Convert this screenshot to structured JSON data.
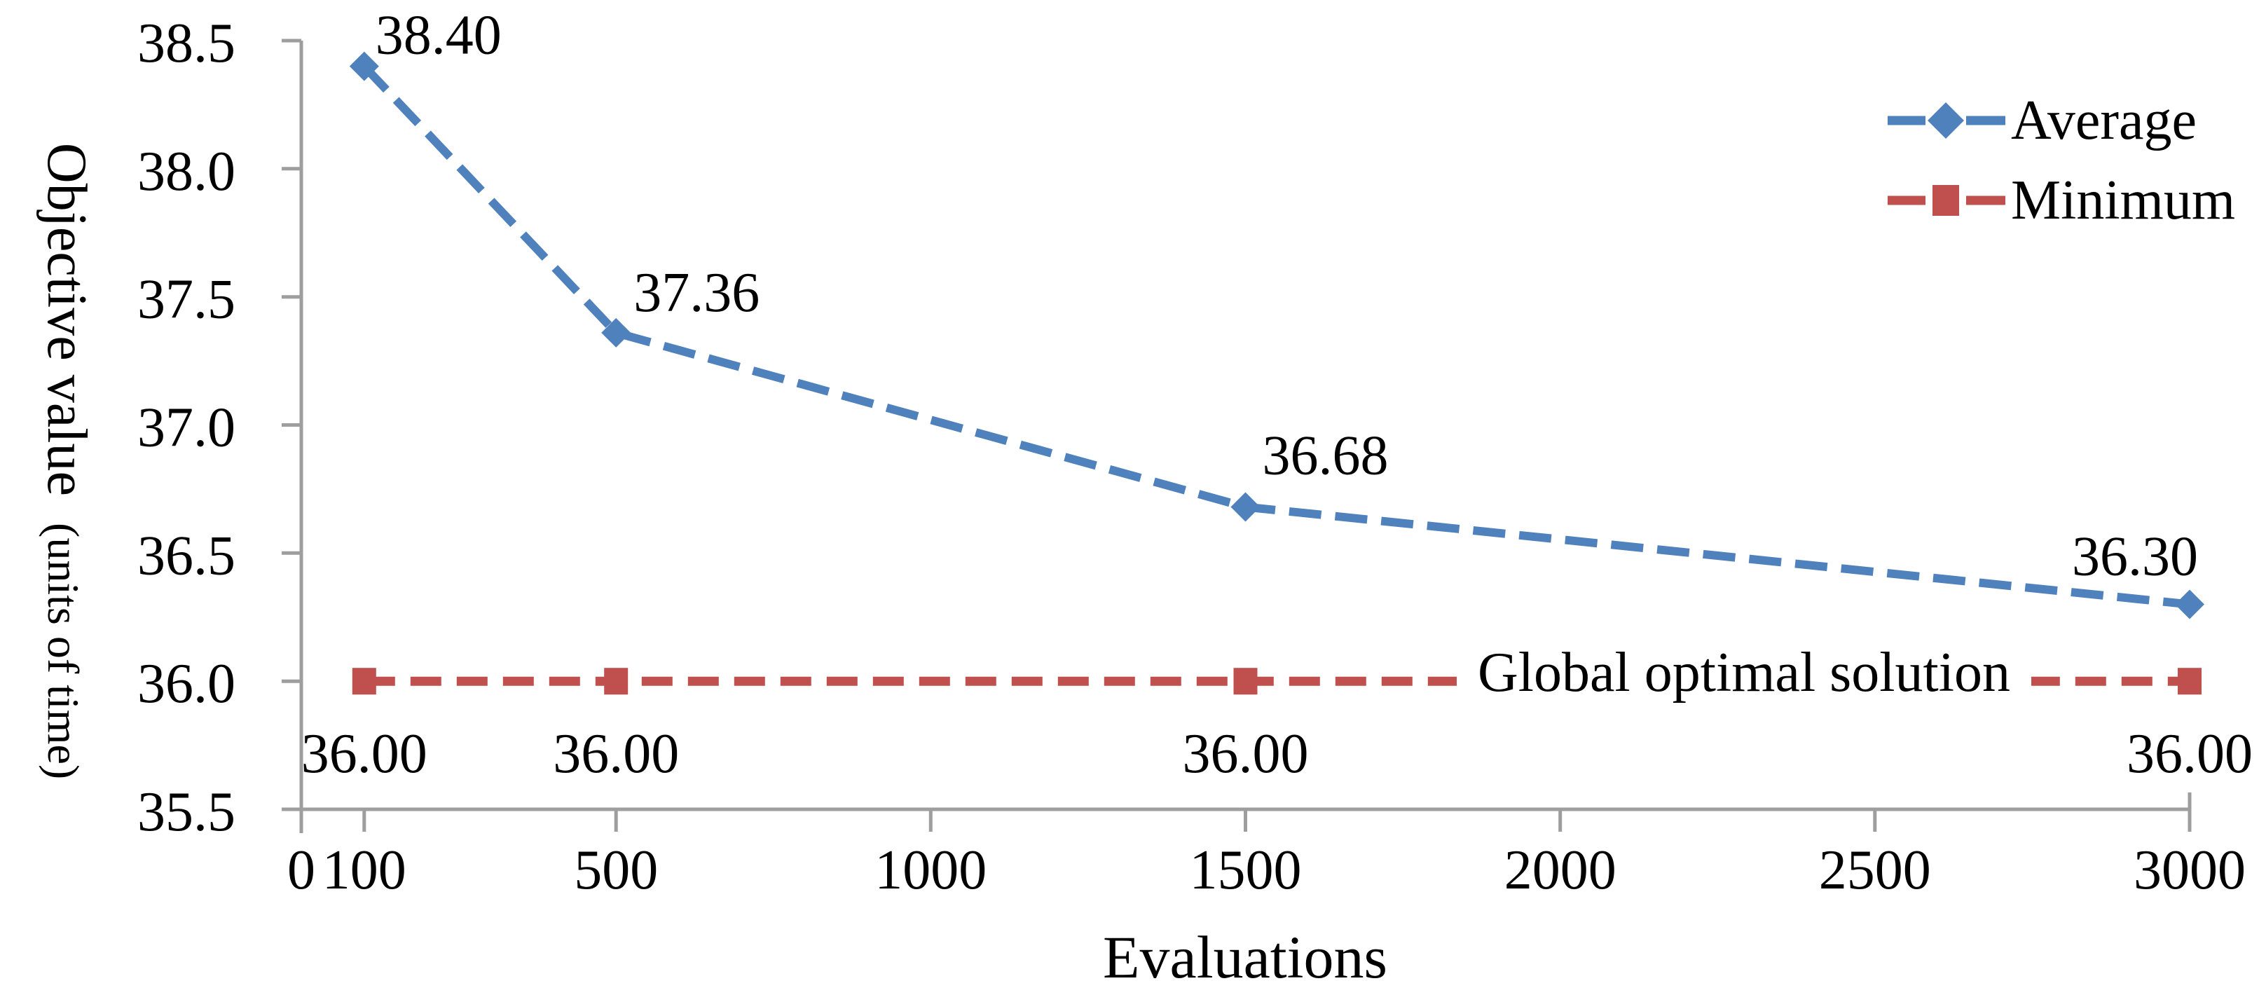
{
  "chart_data": {
    "type": "line",
    "title": "",
    "xlabel": "Evaluations",
    "ylabel": "Objective value",
    "ylabel_sub": "(units of time)",
    "xlim": [
      0,
      3000
    ],
    "ylim": [
      35.5,
      38.5
    ],
    "grid": false,
    "legend_position": "top-right",
    "x_ticks": [
      0,
      100,
      500,
      1000,
      1500,
      2000,
      2500,
      3000
    ],
    "x_tick_labels": [
      "0",
      "100",
      "500",
      "1000",
      "1500",
      "2000",
      "2500",
      "3000"
    ],
    "y_ticks": [
      38.5,
      38.0,
      37.5,
      37.0,
      36.5,
      36.0,
      35.5
    ],
    "y_tick_labels": [
      "38.5",
      "38.0",
      "37.5",
      "37.0",
      "36.5",
      "36.0",
      "35.5"
    ],
    "colors": {
      "axis": "#9E9E9E",
      "text": "#000000",
      "background": "#FFFFFF"
    },
    "series": [
      {
        "name": "Average",
        "color": "#4F81BD",
        "marker": "diamond",
        "line_style": "dashed",
        "x": [
          100,
          500,
          1500,
          3000
        ],
        "y": [
          38.4,
          37.36,
          36.68,
          36.3
        ],
        "point_labels": [
          "38.40",
          "37.36",
          "36.68",
          "36.30"
        ]
      },
      {
        "name": "Minimum",
        "color": "#C0504D",
        "marker": "square",
        "line_style": "dashed",
        "x": [
          100,
          500,
          1500,
          3000
        ],
        "y": [
          36.0,
          36.0,
          36.0,
          36.0
        ],
        "point_labels": [
          "36.00",
          "36.00",
          "36.00",
          "36.00"
        ]
      }
    ],
    "annotations": [
      {
        "text": "Global optimal solution",
        "x": 2292,
        "y": 36.0
      }
    ]
  }
}
